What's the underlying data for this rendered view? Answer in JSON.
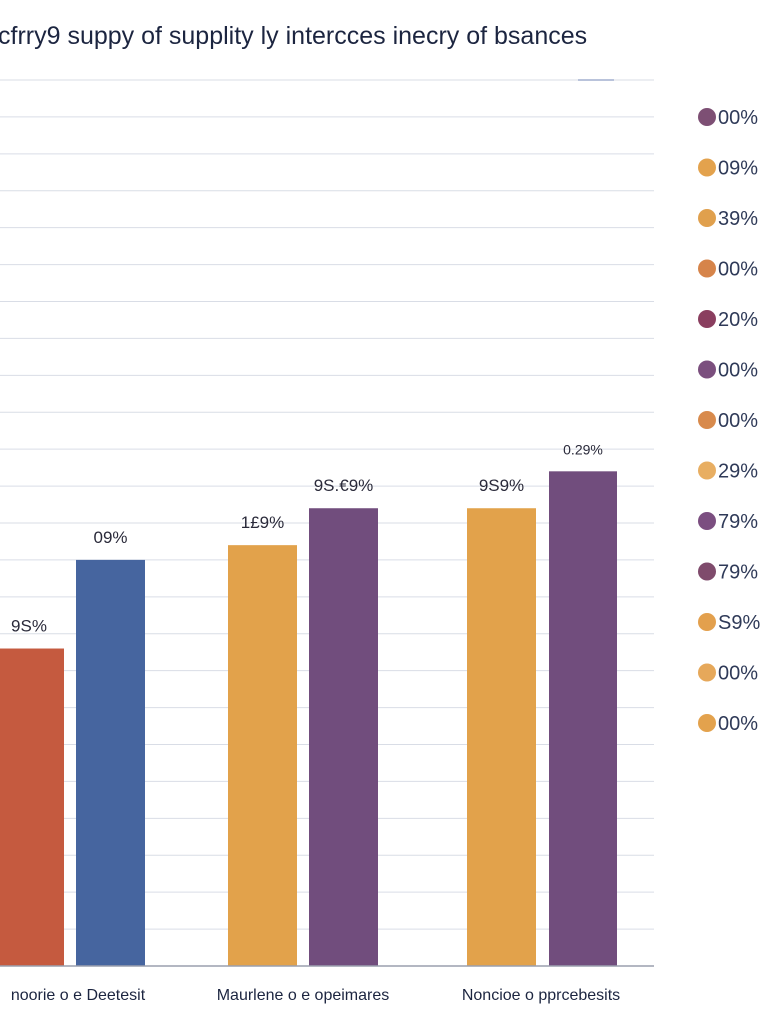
{
  "chart_data": {
    "type": "bar",
    "title": "cfrry9 suppy of supplity ly intercces inecry of bsances",
    "xlabel": "",
    "ylabel": "",
    "ylim": [
      0,
      12
    ],
    "grid": true,
    "legend_position": "right",
    "categories": [
      "noorie o e Deetesit",
      "Maurlene o e opeimares",
      "Noncioe o pprcebesits"
    ],
    "bars": [
      {
        "category": 0,
        "value": 4.3,
        "label": "9S%",
        "color": "#c55a3f"
      },
      {
        "category": 0,
        "value": 5.5,
        "label": "09%",
        "color": "#46659f"
      },
      {
        "category": 1,
        "value": 5.7,
        "label": "1£9%",
        "color": "#e2a24b"
      },
      {
        "category": 1,
        "value": 6.2,
        "label": "9S.€9%",
        "color": "#714d7d"
      },
      {
        "category": 2,
        "value": 6.2,
        "label": "9S9%",
        "color": "#e2a24b"
      },
      {
        "category": 2,
        "value": 6.7,
        "label": "0.29%",
        "color": "#714d7d"
      }
    ],
    "legend": [
      {
        "label": "00%",
        "color": "#7d4f74"
      },
      {
        "label": "09%",
        "color": "#e3a24d"
      },
      {
        "label": "39%",
        "color": "#e0a04d"
      },
      {
        "label": "00%",
        "color": "#d6844a"
      },
      {
        "label": "20%",
        "color": "#8a3e5f"
      },
      {
        "label": "00%",
        "color": "#7b4f7e"
      },
      {
        "label": "00%",
        "color": "#d88a4c"
      },
      {
        "label": "29%",
        "color": "#e8ae62"
      },
      {
        "label": "79%",
        "color": "#7b4e80"
      },
      {
        "label": "79%",
        "color": "#7f4b6c"
      },
      {
        "label": "S9%",
        "color": "#e3a04d"
      },
      {
        "label": "00%",
        "color": "#e6a85a"
      },
      {
        "label": "00%",
        "color": "#e3a24d"
      }
    ]
  }
}
